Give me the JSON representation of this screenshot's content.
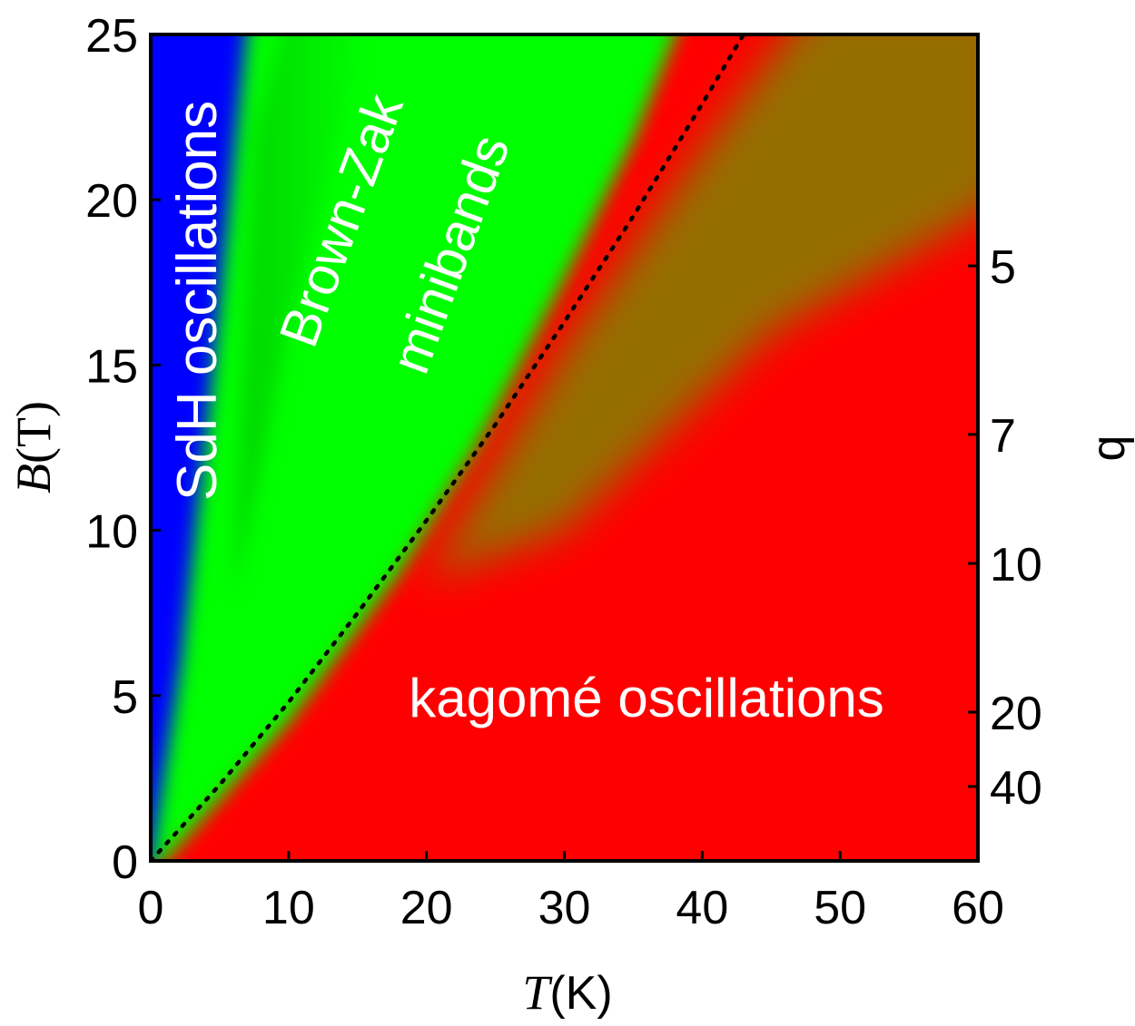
{
  "chart_data": {
    "type": "heatmap",
    "title": "",
    "xlabel": "T(K)",
    "xlabel_symbol": "T",
    "xlabel_unit": "(K)",
    "ylabel": "B(T)",
    "ylabel_symbol": "B",
    "ylabel_unit": "(T)",
    "y2label": "q",
    "xlim": [
      0,
      60
    ],
    "ylim": [
      0,
      25
    ],
    "x_ticks": [
      0,
      10,
      20,
      30,
      40,
      50,
      60
    ],
    "y_ticks": [
      0,
      5,
      10,
      15,
      20,
      25
    ],
    "q_ticks": [
      {
        "label": "5",
        "b": 18.0
      },
      {
        "label": "7",
        "b": 12.9
      },
      {
        "label": "10",
        "b": 9.0
      },
      {
        "label": "20",
        "b": 4.5
      },
      {
        "label": "40",
        "b": 2.25
      }
    ],
    "regions": [
      {
        "name": "SdH oscillations",
        "color": "#0000ff"
      },
      {
        "name": "Brown-Zak minibands",
        "color": "#00ff00"
      },
      {
        "name": "kagomé oscillations",
        "color": "#ff0000"
      }
    ],
    "labels": {
      "sdh": "SdH oscillations",
      "bz_line1": "Brown-Zak",
      "bz_line2": "minibands",
      "kagome": "kagomé oscillations"
    },
    "boundary_curve": {
      "style": "dotted",
      "x": [
        0,
        5,
        10,
        15,
        20,
        25,
        30,
        35,
        40,
        43
      ],
      "y": [
        0,
        2.3,
        4.8,
        7.5,
        10.3,
        13.2,
        16.3,
        19.5,
        22.9,
        25
      ]
    }
  }
}
